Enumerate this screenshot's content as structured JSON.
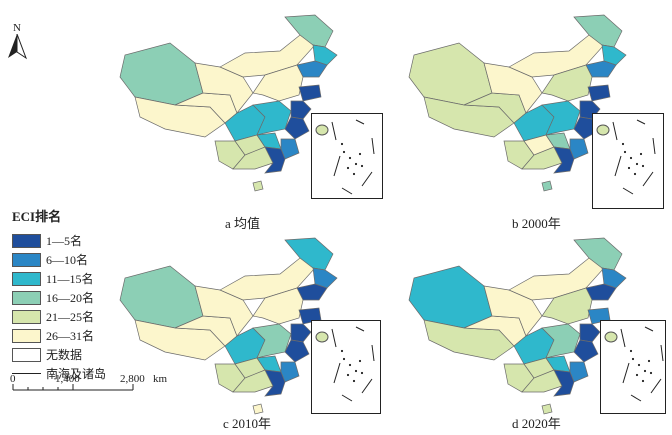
{
  "legend": {
    "title": "ECI排名",
    "classes": [
      {
        "label": "1—5名",
        "color": "#1f4e9c"
      },
      {
        "label": "6—10名",
        "color": "#2b86c5"
      },
      {
        "label": "11—15名",
        "color": "#2fb8cc"
      },
      {
        "label": "16—20名",
        "color": "#8ccfb5"
      },
      {
        "label": "21—25名",
        "color": "#d6e6ad"
      },
      {
        "label": "26—31名",
        "color": "#fcf6cc"
      },
      {
        "label": "无数据",
        "color": "#ffffff"
      }
    ],
    "line_label": "南海及诸岛"
  },
  "north_label": "N",
  "scale": {
    "ticks": [
      "0",
      "1,400",
      "2,800"
    ],
    "unit": "km"
  },
  "panels": [
    {
      "caption": "a 均值"
    },
    {
      "caption": "b 2000年"
    },
    {
      "caption": "c 2010年"
    },
    {
      "caption": "d 2020年"
    }
  ]
}
